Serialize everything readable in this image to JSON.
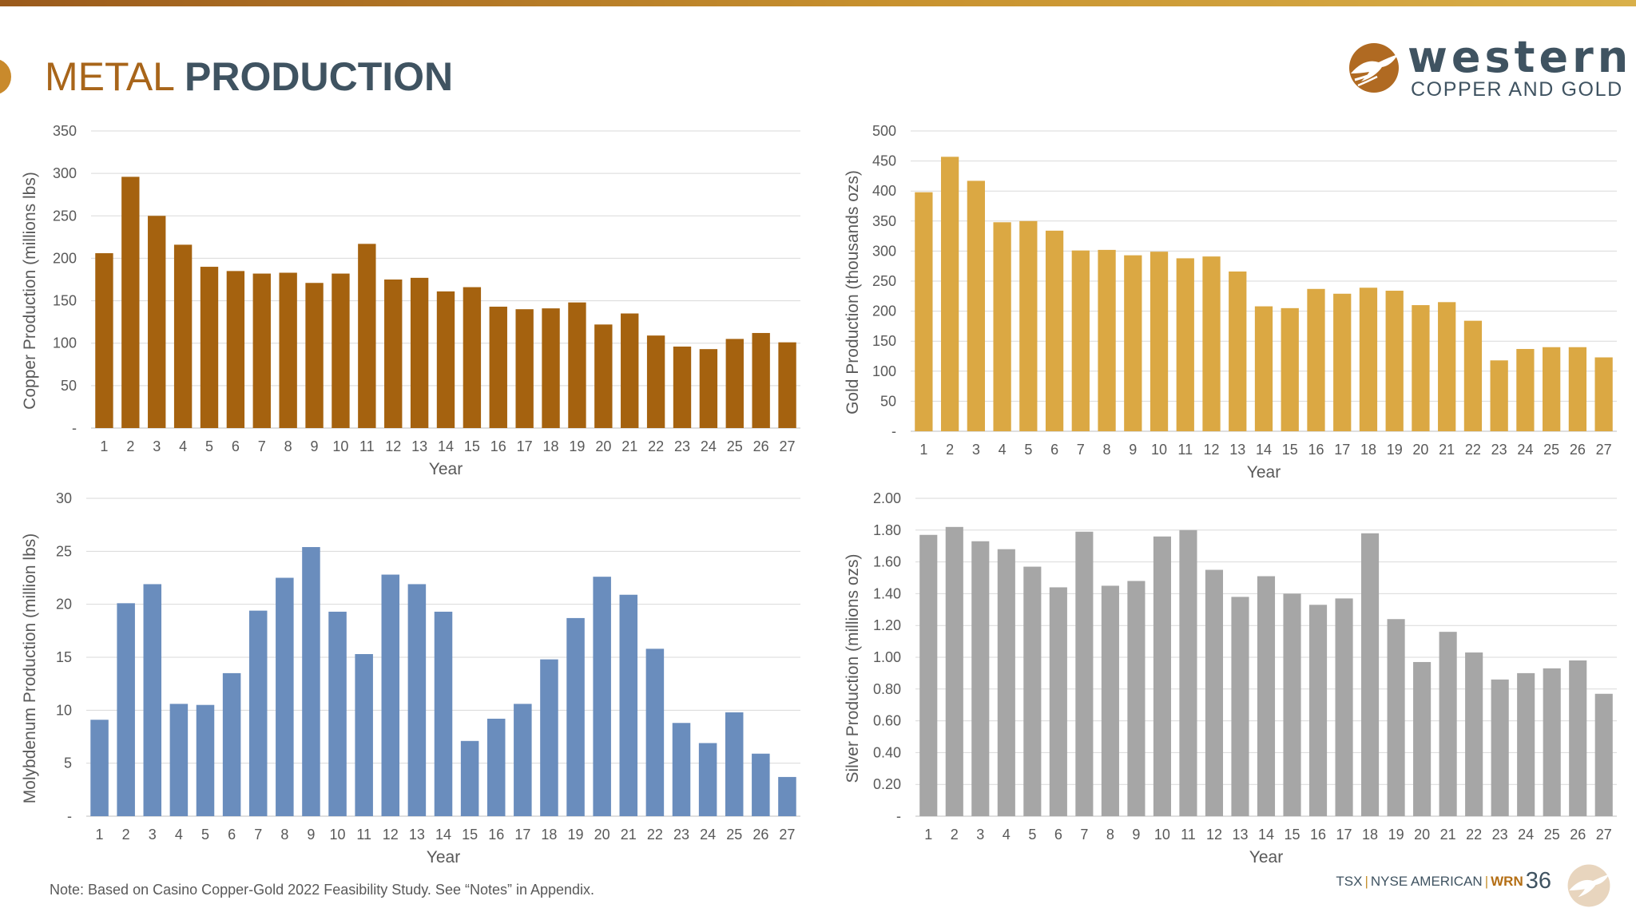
{
  "header": {
    "title_light": "METAL",
    "title_bold": "PRODUCTION",
    "accent_color": "#a8651a",
    "title_color": "#3f5361"
  },
  "logo": {
    "wordmark": "western",
    "subtitle": "COPPER AND GOLD"
  },
  "note": "Note: Based on Casino Copper-Gold 2022 Feasibility Study.  See “Notes” in Appendix.",
  "footer": {
    "exchanges": "TSX",
    "exchange2": "NYSE AMERICAN",
    "ticker": "WRN",
    "page_number": "36"
  },
  "chart_data": [
    {
      "id": "copper",
      "type": "bar",
      "color": "#a5620f",
      "ylabel": "Copper Production (millions lbs)",
      "xlabel": "Year",
      "ylim": [
        0,
        350
      ],
      "yticks": [
        0,
        50,
        100,
        150,
        200,
        250,
        300,
        350
      ],
      "ytick_labels": [
        "-",
        "50",
        "100",
        "150",
        "200",
        "250",
        "300",
        "350"
      ],
      "categories": [
        "1",
        "2",
        "3",
        "4",
        "5",
        "6",
        "7",
        "8",
        "9",
        "10",
        "11",
        "12",
        "13",
        "14",
        "15",
        "16",
        "17",
        "18",
        "19",
        "20",
        "21",
        "22",
        "23",
        "24",
        "25",
        "26",
        "27"
      ],
      "values": [
        206,
        296,
        250,
        216,
        190,
        185,
        182,
        183,
        171,
        182,
        217,
        175,
        177,
        161,
        166,
        143,
        140,
        141,
        148,
        122,
        135,
        109,
        96,
        93,
        105,
        112,
        101
      ]
    },
    {
      "id": "gold",
      "type": "bar",
      "color": "#dba843",
      "ylabel": "Gold Production (thousands ozs)",
      "xlabel": "Year",
      "ylim": [
        0,
        500
      ],
      "yticks": [
        0,
        50,
        100,
        150,
        200,
        250,
        300,
        350,
        400,
        450,
        500
      ],
      "ytick_labels": [
        "-",
        "50",
        "100",
        "150",
        "200",
        "250",
        "300",
        "350",
        "400",
        "450",
        "500"
      ],
      "categories": [
        "1",
        "2",
        "3",
        "4",
        "5",
        "6",
        "7",
        "8",
        "9",
        "10",
        "11",
        "12",
        "13",
        "14",
        "15",
        "16",
        "17",
        "18",
        "19",
        "20",
        "21",
        "22",
        "23",
        "24",
        "25",
        "26",
        "27"
      ],
      "values": [
        398,
        457,
        417,
        348,
        350,
        334,
        301,
        302,
        293,
        299,
        288,
        291,
        266,
        208,
        205,
        237,
        229,
        239,
        234,
        210,
        215,
        184,
        118,
        137,
        140,
        140,
        123
      ]
    },
    {
      "id": "molybdenum",
      "type": "bar",
      "color": "#6a8dbd",
      "ylabel": "Molybdenum Production (million lbs)",
      "xlabel": "Year",
      "ylim": [
        0,
        30
      ],
      "yticks": [
        0,
        5,
        10,
        15,
        20,
        25,
        30
      ],
      "ytick_labels": [
        "-",
        "5",
        "10",
        "15",
        "20",
        "25",
        "30"
      ],
      "categories": [
        "1",
        "2",
        "3",
        "4",
        "5",
        "6",
        "7",
        "8",
        "9",
        "10",
        "11",
        "12",
        "13",
        "14",
        "15",
        "16",
        "17",
        "18",
        "19",
        "20",
        "21",
        "22",
        "23",
        "24",
        "25",
        "26",
        "27"
      ],
      "values": [
        9.1,
        20.1,
        21.9,
        10.6,
        10.5,
        13.5,
        19.4,
        22.5,
        25.4,
        19.3,
        15.3,
        22.8,
        21.9,
        19.3,
        7.1,
        9.2,
        10.6,
        14.8,
        18.7,
        22.6,
        20.9,
        15.8,
        8.8,
        6.9,
        9.8,
        5.9,
        3.7
      ]
    },
    {
      "id": "silver",
      "type": "bar",
      "color": "#a6a6a6",
      "ylabel": "Silver Production (millions ozs)",
      "xlabel": "Year",
      "ylim": [
        0,
        2.0
      ],
      "yticks": [
        0,
        0.2,
        0.4,
        0.6,
        0.8,
        1.0,
        1.2,
        1.4,
        1.6,
        1.8,
        2.0
      ],
      "ytick_labels": [
        "-",
        "0.20",
        "0.40",
        "0.60",
        "0.80",
        "1.00",
        "1.20",
        "1.40",
        "1.60",
        "1.80",
        "2.00"
      ],
      "categories": [
        "1",
        "2",
        "3",
        "4",
        "5",
        "6",
        "7",
        "8",
        "9",
        "10",
        "11",
        "12",
        "13",
        "14",
        "15",
        "16",
        "17",
        "18",
        "19",
        "20",
        "21",
        "22",
        "23",
        "24",
        "25",
        "26",
        "27"
      ],
      "values": [
        1.77,
        1.82,
        1.73,
        1.68,
        1.57,
        1.44,
        1.79,
        1.45,
        1.48,
        1.76,
        1.8,
        1.55,
        1.38,
        1.51,
        1.4,
        1.33,
        1.37,
        1.78,
        1.24,
        0.97,
        1.16,
        1.03,
        0.86,
        0.9,
        0.93,
        0.98,
        0.77
      ]
    }
  ]
}
